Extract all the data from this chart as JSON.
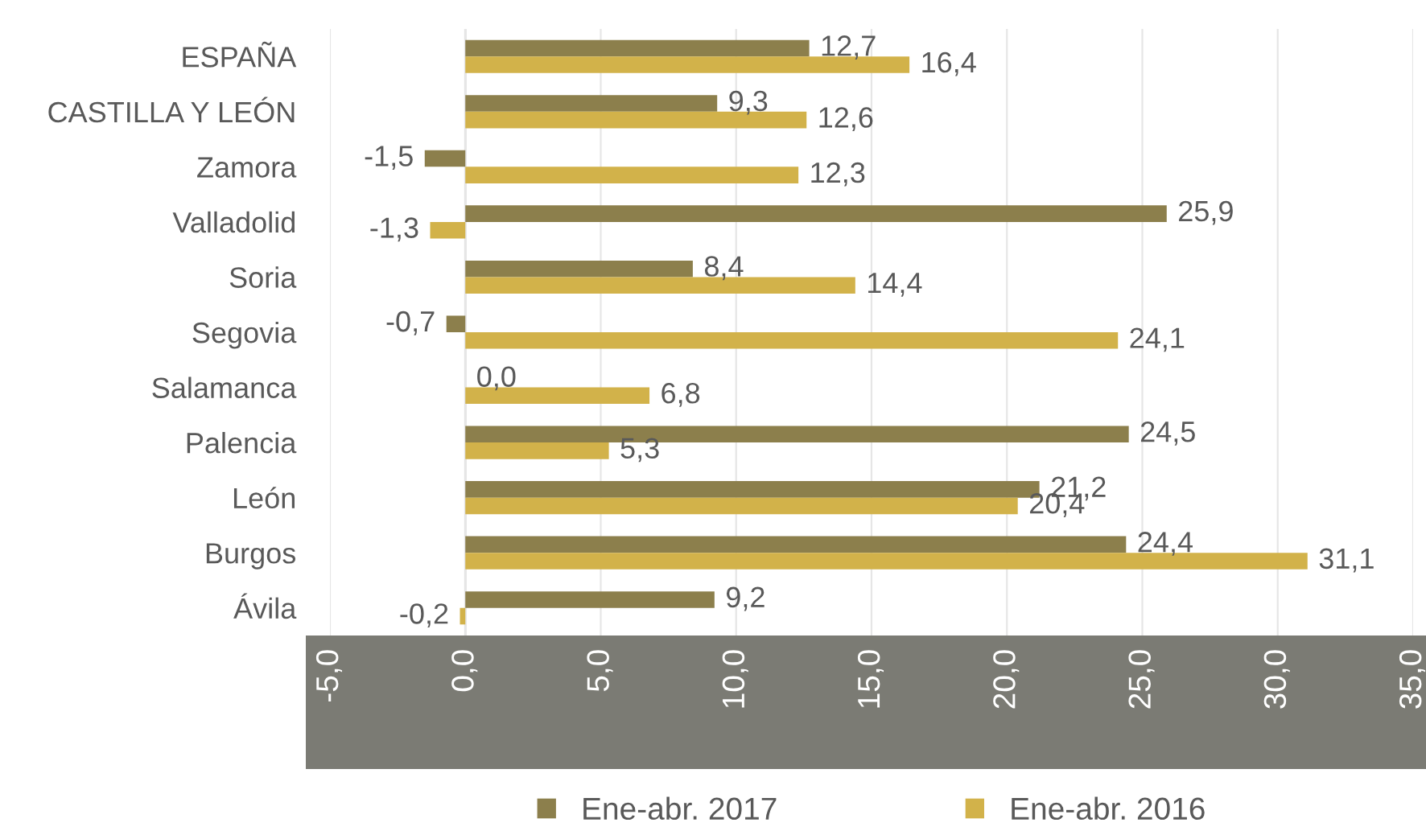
{
  "chart_data": {
    "type": "bar",
    "orientation": "horizontal",
    "categories": [
      "ESPAÑA",
      "CASTILLA Y LEÓN",
      "Zamora",
      "Valladolid",
      "Soria",
      "Segovia",
      "Salamanca",
      "Palencia",
      "León",
      "Burgos",
      "Ávila"
    ],
    "series": [
      {
        "name": "Ene-abr. 2017",
        "color": "#8c7f4c",
        "values": [
          12.7,
          9.3,
          -1.5,
          25.9,
          8.4,
          -0.7,
          0.0,
          24.5,
          21.2,
          24.4,
          9.2
        ],
        "value_labels": [
          "12,7",
          "9,3",
          "-1,5",
          "25,9",
          "8,4",
          "-0,7",
          "0,0",
          "24,5",
          "21,2",
          "24,4",
          "9,2"
        ]
      },
      {
        "name": "Ene-abr. 2016",
        "color": "#d2b24a",
        "values": [
          16.4,
          12.6,
          12.3,
          -1.3,
          14.4,
          24.1,
          6.8,
          5.3,
          20.4,
          31.1,
          -0.2
        ],
        "value_labels": [
          "16,4",
          "12,6",
          "12,3",
          "-1,3",
          "14,4",
          "24,1",
          "6,8",
          "5,3",
          "20,4",
          "31,1",
          "-0,2"
        ]
      }
    ],
    "xlim": [
      -5,
      35
    ],
    "xticks": [
      {
        "value": -5,
        "label": "-5,0"
      },
      {
        "value": 0,
        "label": "0,0"
      },
      {
        "value": 5,
        "label": "5,0"
      },
      {
        "value": 10,
        "label": "10,0"
      },
      {
        "value": 15,
        "label": "15,0"
      },
      {
        "value": 20,
        "label": "20,0"
      },
      {
        "value": 25,
        "label": "25,0"
      },
      {
        "value": 30,
        "label": "30,0"
      },
      {
        "value": 35,
        "label": "35,0"
      }
    ],
    "grid": "x",
    "legend": "bottom"
  }
}
